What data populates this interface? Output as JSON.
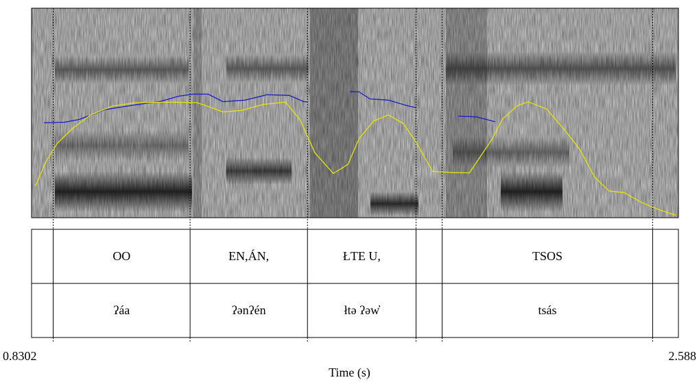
{
  "time_axis": {
    "start_label": "0.8302",
    "end_label": "2.588",
    "xlabel": "Time (s)",
    "start": 0.8302,
    "end": 2.588
  },
  "boundaries": [
    0.8302,
    0.889,
    1.261,
    1.58,
    1.875,
    1.946,
    2.518,
    2.588
  ],
  "tiers": [
    {
      "name": "tier-1",
      "intervals": [
        {
          "start": 0.8302,
          "end": 0.889,
          "text": ""
        },
        {
          "start": 0.889,
          "end": 1.261,
          "text": "OO"
        },
        {
          "start": 1.261,
          "end": 1.58,
          "text": "EN,ÁN,"
        },
        {
          "start": 1.58,
          "end": 1.875,
          "text": "ŁTE U,"
        },
        {
          "start": 1.875,
          "end": 1.946,
          "text": ""
        },
        {
          "start": 1.946,
          "end": 2.518,
          "text": "TSOS"
        },
        {
          "start": 2.518,
          "end": 2.588,
          "text": ""
        }
      ]
    },
    {
      "name": "tier-2",
      "intervals": [
        {
          "start": 0.8302,
          "end": 0.889,
          "text": ""
        },
        {
          "start": 0.889,
          "end": 1.261,
          "text": "ʔáa"
        },
        {
          "start": 1.261,
          "end": 1.58,
          "text": "ʔənʔén"
        },
        {
          "start": 1.58,
          "end": 1.875,
          "text": "łtə ʔəw̓"
        },
        {
          "start": 1.875,
          "end": 1.946,
          "text": ""
        },
        {
          "start": 1.946,
          "end": 2.518,
          "text": "tsás"
        },
        {
          "start": 2.518,
          "end": 2.588,
          "text": ""
        }
      ]
    }
  ],
  "colors": {
    "pitch": "#1a1acc",
    "intensity": "#e6e600",
    "spectrogram_dark": "#1e1e1e",
    "spectrogram_light": "#e8e8e8"
  },
  "chart_data": {
    "type": "line",
    "series": [
      {
        "curve": "pitch",
        "segments": [
          [
            [
              0.864,
              0.453
            ],
            [
              0.92,
              0.456
            ],
            [
              0.96,
              0.469
            ],
            [
              1.03,
              0.516
            ],
            [
              1.12,
              0.541
            ],
            [
              1.18,
              0.555
            ],
            [
              1.23,
              0.58
            ],
            [
              1.27,
              0.59
            ],
            [
              1.31,
              0.59
            ],
            [
              1.35,
              0.554
            ],
            [
              1.41,
              0.561
            ],
            [
              1.47,
              0.587
            ],
            [
              1.53,
              0.584
            ],
            [
              1.57,
              0.554
            ],
            [
              1.58,
              0.553
            ]
          ],
          [
            [
              1.695,
              0.602
            ],
            [
              1.72,
              0.601
            ],
            [
              1.75,
              0.567
            ],
            [
              1.8,
              0.561
            ],
            [
              1.85,
              0.535
            ],
            [
              1.875,
              0.525
            ]
          ],
          [
            [
              1.99,
              0.485
            ],
            [
              2.04,
              0.481
            ],
            [
              2.09,
              0.458
            ]
          ]
        ]
      },
      {
        "curve": "intensity",
        "segments": [
          [
            [
              0.84,
              0.149
            ],
            [
              0.87,
              0.27
            ],
            [
              0.9,
              0.355
            ],
            [
              0.94,
              0.424
            ],
            [
              0.99,
              0.49
            ],
            [
              1.05,
              0.533
            ],
            [
              1.11,
              0.548
            ],
            [
              1.17,
              0.551
            ],
            [
              1.23,
              0.551
            ],
            [
              1.28,
              0.549
            ],
            [
              1.31,
              0.531
            ],
            [
              1.35,
              0.505
            ],
            [
              1.4,
              0.512
            ],
            [
              1.46,
              0.541
            ],
            [
              1.52,
              0.552
            ],
            [
              1.56,
              0.467
            ],
            [
              1.6,
              0.31
            ],
            [
              1.65,
              0.211
            ],
            [
              1.69,
              0.255
            ],
            [
              1.72,
              0.377
            ],
            [
              1.76,
              0.462
            ],
            [
              1.8,
              0.491
            ],
            [
              1.84,
              0.45
            ],
            [
              1.875,
              0.361
            ],
            [
              1.92,
              0.221
            ],
            [
              1.98,
              0.215
            ],
            [
              2.02,
              0.214
            ],
            [
              2.08,
              0.371
            ],
            [
              2.11,
              0.471
            ],
            [
              2.15,
              0.535
            ],
            [
              2.18,
              0.553
            ],
            [
              2.23,
              0.519
            ],
            [
              2.28,
              0.416
            ],
            [
              2.32,
              0.326
            ],
            [
              2.36,
              0.194
            ],
            [
              2.4,
              0.127
            ],
            [
              2.44,
              0.12
            ],
            [
              2.49,
              0.071
            ],
            [
              2.54,
              0.035
            ],
            [
              2.58,
              0.012
            ]
          ]
        ]
      }
    ]
  }
}
